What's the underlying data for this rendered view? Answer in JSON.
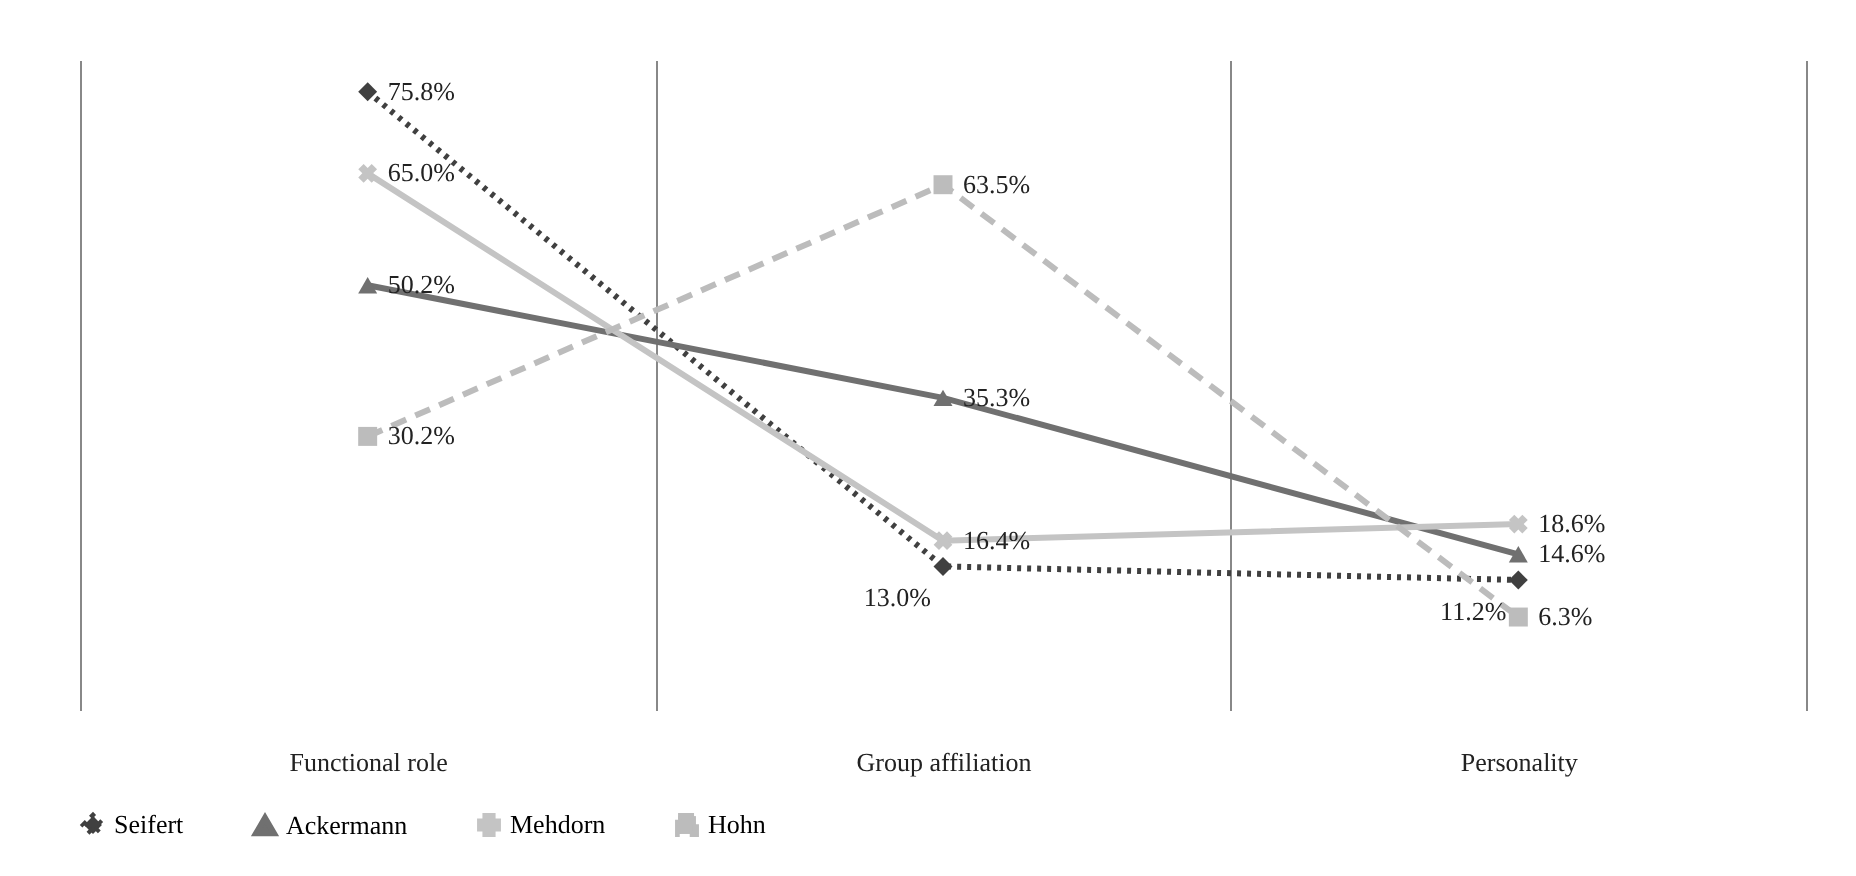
{
  "chart_data": {
    "type": "line",
    "categories": [
      "Functional role",
      "Group affiliation",
      "Personality"
    ],
    "series": [
      {
        "name": "Seifert",
        "color": "#404040",
        "line_style": "dotted",
        "marker": "diamond",
        "values": [
          75.8,
          13.0,
          11.2
        ],
        "value_labels": [
          "75.8%",
          "13.0%",
          "11.2%"
        ]
      },
      {
        "name": "Ackermann",
        "color": "#707070",
        "line_style": "solid",
        "marker": "triangle",
        "values": [
          50.2,
          35.3,
          14.6
        ],
        "value_labels": [
          "50.2%",
          "35.3%",
          "14.6%"
        ]
      },
      {
        "name": "Mehdorn",
        "color": "#c4c4c4",
        "line_style": "solid",
        "marker": "cross",
        "values": [
          65.0,
          16.4,
          18.6
        ],
        "value_labels": [
          "65.0%",
          "16.4%",
          "18.6%"
        ]
      },
      {
        "name": "Hohn",
        "color": "#bcbcbc",
        "line_style": "dashed",
        "marker": "square",
        "values": [
          30.2,
          63.5,
          6.3
        ],
        "value_labels": [
          "30.2%",
          "63.5%",
          "6.3%"
        ]
      }
    ],
    "ylim": [
      -6,
      80
    ],
    "tick_labels": "x",
    "grid": "x",
    "legend": "bottom"
  }
}
